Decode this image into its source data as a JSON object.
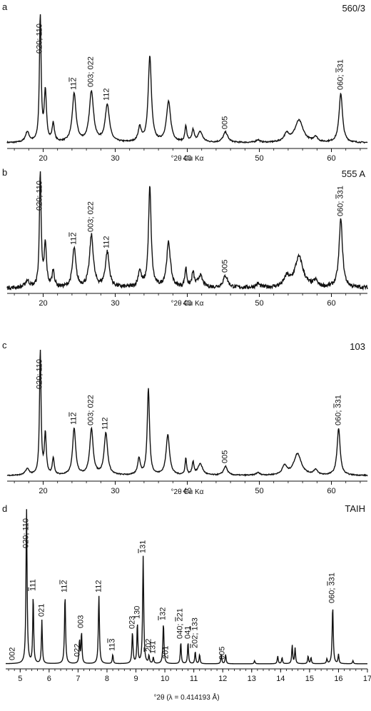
{
  "chart_data": [
    {
      "type": "line",
      "panel": "a",
      "sample": "560/3",
      "xlabel": "°2θ Cu Kα",
      "xlim": [
        15,
        65
      ],
      "xticks": [
        20,
        30,
        40,
        50,
        60
      ],
      "tick_labels": [
        "20",
        "30",
        "40",
        "50",
        "60"
      ],
      "peaks": [
        {
          "x": 17.8,
          "h": 0.08,
          "w": 0.5
        },
        {
          "x": 19.6,
          "h": 1.0,
          "w": 0.22
        },
        {
          "x": 20.3,
          "h": 0.38,
          "w": 0.3
        },
        {
          "x": 21.4,
          "h": 0.14,
          "w": 0.3
        },
        {
          "x": 24.3,
          "h": 0.37,
          "w": 0.5
        },
        {
          "x": 26.7,
          "h": 0.39,
          "w": 0.55
        },
        {
          "x": 28.9,
          "h": 0.29,
          "w": 0.55
        },
        {
          "x": 33.4,
          "h": 0.11,
          "w": 0.4
        },
        {
          "x": 34.8,
          "h": 0.66,
          "w": 0.42
        },
        {
          "x": 37.4,
          "h": 0.31,
          "w": 0.55
        },
        {
          "x": 39.8,
          "h": 0.12,
          "w": 0.25
        },
        {
          "x": 40.8,
          "h": 0.09,
          "w": 0.3
        },
        {
          "x": 41.8,
          "h": 0.08,
          "w": 0.6
        },
        {
          "x": 45.3,
          "h": 0.08,
          "w": 0.6
        },
        {
          "x": 49.8,
          "h": 0.02,
          "w": 0.5
        },
        {
          "x": 53.8,
          "h": 0.06,
          "w": 0.7
        },
        {
          "x": 55.5,
          "h": 0.17,
          "w": 1.1
        },
        {
          "x": 57.8,
          "h": 0.04,
          "w": 0.5
        },
        {
          "x": 61.3,
          "h": 0.38,
          "w": 0.45
        }
      ],
      "baseline": 0.01,
      "noise": 0.005,
      "labels": [
        {
          "text": "020; 110",
          "x": 19.6
        },
        {
          "text": "11<span style='text-decoration:overline'>2</span>",
          "x": 24.3
        },
        {
          "text": "003; 022",
          "x": 26.7
        },
        {
          "text": "112",
          "x": 28.9
        },
        {
          "text": "005",
          "x": 45.3
        },
        {
          "text": "060; <span style='text-decoration:overline'>3</span>31",
          "x": 61.3
        }
      ]
    },
    {
      "type": "line",
      "panel": "b",
      "sample": "555 A",
      "xlabel": "°2θ Cu Kα",
      "xlim": [
        15,
        65
      ],
      "xticks": [
        20,
        30,
        40,
        50,
        60
      ],
      "tick_labels": [
        "20",
        "30",
        "40",
        "50",
        "60"
      ],
      "peaks": [
        {
          "x": 17.8,
          "h": 0.06,
          "w": 0.5
        },
        {
          "x": 19.6,
          "h": 1.0,
          "w": 0.22
        },
        {
          "x": 20.3,
          "h": 0.36,
          "w": 0.3
        },
        {
          "x": 21.4,
          "h": 0.14,
          "w": 0.3
        },
        {
          "x": 24.3,
          "h": 0.33,
          "w": 0.45
        },
        {
          "x": 26.7,
          "h": 0.44,
          "w": 0.5
        },
        {
          "x": 28.9,
          "h": 0.3,
          "w": 0.5
        },
        {
          "x": 33.4,
          "h": 0.14,
          "w": 0.4
        },
        {
          "x": 34.8,
          "h": 0.85,
          "w": 0.35
        },
        {
          "x": 37.4,
          "h": 0.38,
          "w": 0.5
        },
        {
          "x": 39.8,
          "h": 0.16,
          "w": 0.25
        },
        {
          "x": 40.8,
          "h": 0.12,
          "w": 0.3
        },
        {
          "x": 41.8,
          "h": 0.1,
          "w": 0.6
        },
        {
          "x": 45.3,
          "h": 0.1,
          "w": 0.6
        },
        {
          "x": 49.8,
          "h": 0.03,
          "w": 0.5
        },
        {
          "x": 53.8,
          "h": 0.08,
          "w": 0.7
        },
        {
          "x": 55.5,
          "h": 0.26,
          "w": 1.1
        },
        {
          "x": 57.8,
          "h": 0.05,
          "w": 0.5
        },
        {
          "x": 61.3,
          "h": 0.58,
          "w": 0.45
        }
      ],
      "baseline": 0.01,
      "noise": 0.016,
      "labels": [
        {
          "text": "020; 110",
          "x": 19.6
        },
        {
          "text": "11<span style='text-decoration:overline'>2</span>",
          "x": 24.3
        },
        {
          "text": "003; 022",
          "x": 26.7
        },
        {
          "text": "112",
          "x": 28.9
        },
        {
          "text": "005",
          "x": 45.3
        },
        {
          "text": "060; <span style='text-decoration:overline'>3</span>31",
          "x": 61.3
        }
      ]
    },
    {
      "type": "line",
      "panel": "c",
      "sample": "103",
      "xlabel": "°2θ Cu Kα",
      "xlim": [
        15,
        65
      ],
      "xticks": [
        20,
        30,
        40,
        50,
        60
      ],
      "tick_labels": [
        "20",
        "30",
        "40",
        "50",
        "60"
      ],
      "peaks": [
        {
          "x": 17.8,
          "h": 0.05,
          "w": 0.5
        },
        {
          "x": 19.6,
          "h": 1.0,
          "w": 0.2
        },
        {
          "x": 20.3,
          "h": 0.32,
          "w": 0.25
        },
        {
          "x": 21.4,
          "h": 0.13,
          "w": 0.25
        },
        {
          "x": 24.3,
          "h": 0.37,
          "w": 0.4
        },
        {
          "x": 26.7,
          "h": 0.36,
          "w": 0.45
        },
        {
          "x": 28.7,
          "h": 0.33,
          "w": 0.45
        },
        {
          "x": 33.3,
          "h": 0.13,
          "w": 0.35
        },
        {
          "x": 34.6,
          "h": 0.68,
          "w": 0.3
        },
        {
          "x": 37.3,
          "h": 0.32,
          "w": 0.45
        },
        {
          "x": 39.8,
          "h": 0.13,
          "w": 0.2
        },
        {
          "x": 40.8,
          "h": 0.1,
          "w": 0.25
        },
        {
          "x": 41.8,
          "h": 0.09,
          "w": 0.6
        },
        {
          "x": 45.3,
          "h": 0.07,
          "w": 0.5
        },
        {
          "x": 49.8,
          "h": 0.02,
          "w": 0.5
        },
        {
          "x": 53.5,
          "h": 0.07,
          "w": 0.6
        },
        {
          "x": 55.3,
          "h": 0.17,
          "w": 1.0
        },
        {
          "x": 57.8,
          "h": 0.04,
          "w": 0.5
        },
        {
          "x": 61.0,
          "h": 0.37,
          "w": 0.4
        }
      ],
      "baseline": 0.01,
      "noise": 0.004,
      "labels": [
        {
          "text": "020; 110",
          "x": 19.6
        },
        {
          "text": "11<span style='text-decoration:overline'>2</span>",
          "x": 24.3
        },
        {
          "text": "003; 022",
          "x": 26.7
        },
        {
          "text": "112",
          "x": 28.7
        },
        {
          "text": "005",
          "x": 45.3
        },
        {
          "text": "060; <span style='text-decoration:overline'>3</span>31",
          "x": 61.0
        }
      ]
    },
    {
      "type": "line",
      "panel": "d",
      "sample": "TAIH",
      "xlabel": "°2θ (λ = 0.414193 Å)",
      "xlim": [
        4.5,
        17
      ],
      "xticks": [
        5,
        6,
        7,
        8,
        9,
        10,
        11,
        12,
        13,
        14,
        15,
        16,
        17
      ],
      "tick_labels": [
        "5",
        "6",
        "7",
        "8",
        "9",
        "10",
        "11",
        "12",
        "13",
        "14",
        "15",
        "16",
        "17"
      ],
      "peaks": [
        {
          "x": 5.22,
          "h": 1.0,
          "w": 0.035
        },
        {
          "x": 5.45,
          "h": 0.44,
          "w": 0.03
        },
        {
          "x": 5.75,
          "h": 0.28,
          "w": 0.03
        },
        {
          "x": 6.55,
          "h": 0.44,
          "w": 0.035
        },
        {
          "x": 7.05,
          "h": 0.15,
          "w": 0.03
        },
        {
          "x": 7.12,
          "h": 0.2,
          "w": 0.03
        },
        {
          "x": 7.72,
          "h": 0.44,
          "w": 0.035
        },
        {
          "x": 8.2,
          "h": 0.06,
          "w": 0.03
        },
        {
          "x": 8.88,
          "h": 0.2,
          "w": 0.035
        },
        {
          "x": 9.05,
          "h": 0.26,
          "w": 0.03
        },
        {
          "x": 9.25,
          "h": 0.69,
          "w": 0.035
        },
        {
          "x": 9.45,
          "h": 0.05,
          "w": 0.03
        },
        {
          "x": 9.6,
          "h": 0.04,
          "w": 0.03
        },
        {
          "x": 9.95,
          "h": 0.26,
          "w": 0.035
        },
        {
          "x": 10.55,
          "h": 0.14,
          "w": 0.03
        },
        {
          "x": 10.8,
          "h": 0.14,
          "w": 0.03
        },
        {
          "x": 11.05,
          "h": 0.08,
          "w": 0.03
        },
        {
          "x": 11.2,
          "h": 0.06,
          "w": 0.03
        },
        {
          "x": 11.95,
          "h": 0.06,
          "w": 0.03
        },
        {
          "x": 12.1,
          "h": 0.06,
          "w": 0.03
        },
        {
          "x": 13.1,
          "h": 0.02,
          "w": 0.03
        },
        {
          "x": 13.9,
          "h": 0.05,
          "w": 0.03
        },
        {
          "x": 14.05,
          "h": 0.04,
          "w": 0.03
        },
        {
          "x": 14.4,
          "h": 0.12,
          "w": 0.03
        },
        {
          "x": 14.5,
          "h": 0.1,
          "w": 0.03
        },
        {
          "x": 14.95,
          "h": 0.05,
          "w": 0.03
        },
        {
          "x": 15.05,
          "h": 0.04,
          "w": 0.03
        },
        {
          "x": 15.6,
          "h": 0.03,
          "w": 0.03
        },
        {
          "x": 15.8,
          "h": 0.37,
          "w": 0.035
        },
        {
          "x": 16.0,
          "h": 0.06,
          "w": 0.03
        },
        {
          "x": 16.5,
          "h": 0.02,
          "w": 0.03
        }
      ],
      "baseline": 0.005,
      "noise": 0.0,
      "labels": [
        {
          "text": "002",
          "x": 4.75
        },
        {
          "text": "020; 110",
          "x": 5.22
        },
        {
          "text": "<span style='text-decoration:overline'>1</span>11",
          "x": 5.45
        },
        {
          "text": "021",
          "x": 5.75
        },
        {
          "text": "11<span style='text-decoration:overline'>2</span>",
          "x": 6.55
        },
        {
          "text": "022",
          "x": 7.0
        },
        {
          "text": "003",
          "x": 7.12
        },
        {
          "text": "112",
          "x": 7.72
        },
        {
          "text": "11<span style='text-decoration:overline'>3</span>",
          "x": 8.2
        },
        {
          "text": "023",
          "x": 8.88
        },
        {
          "text": "130",
          "x": 9.05
        },
        {
          "text": "<span style='text-decoration:overline'>1</span>31",
          "x": 9.25
        },
        {
          "text": "<span style='text-decoration:overline'>2</span>02",
          "x": 9.45
        },
        {
          "text": "131",
          "x": 9.6
        },
        {
          "text": "<span style='text-decoration:overline'>1</span>32",
          "x": 9.95
        },
        {
          "text": "201",
          "x": 10.05
        },
        {
          "text": "040; <span style='text-decoration:overline'>2</span>21",
          "x": 10.55
        },
        {
          "text": "041",
          "x": 10.8
        },
        {
          "text": "<span style='text-decoration:overline'>2</span>02; <span style='text-decoration:overline'>1</span>33",
          "x": 11.05
        },
        {
          "text": "005",
          "x": 12.0
        },
        {
          "text": "060; <span style='text-decoration:overline'>3</span>31",
          "x": 15.8
        }
      ]
    }
  ]
}
